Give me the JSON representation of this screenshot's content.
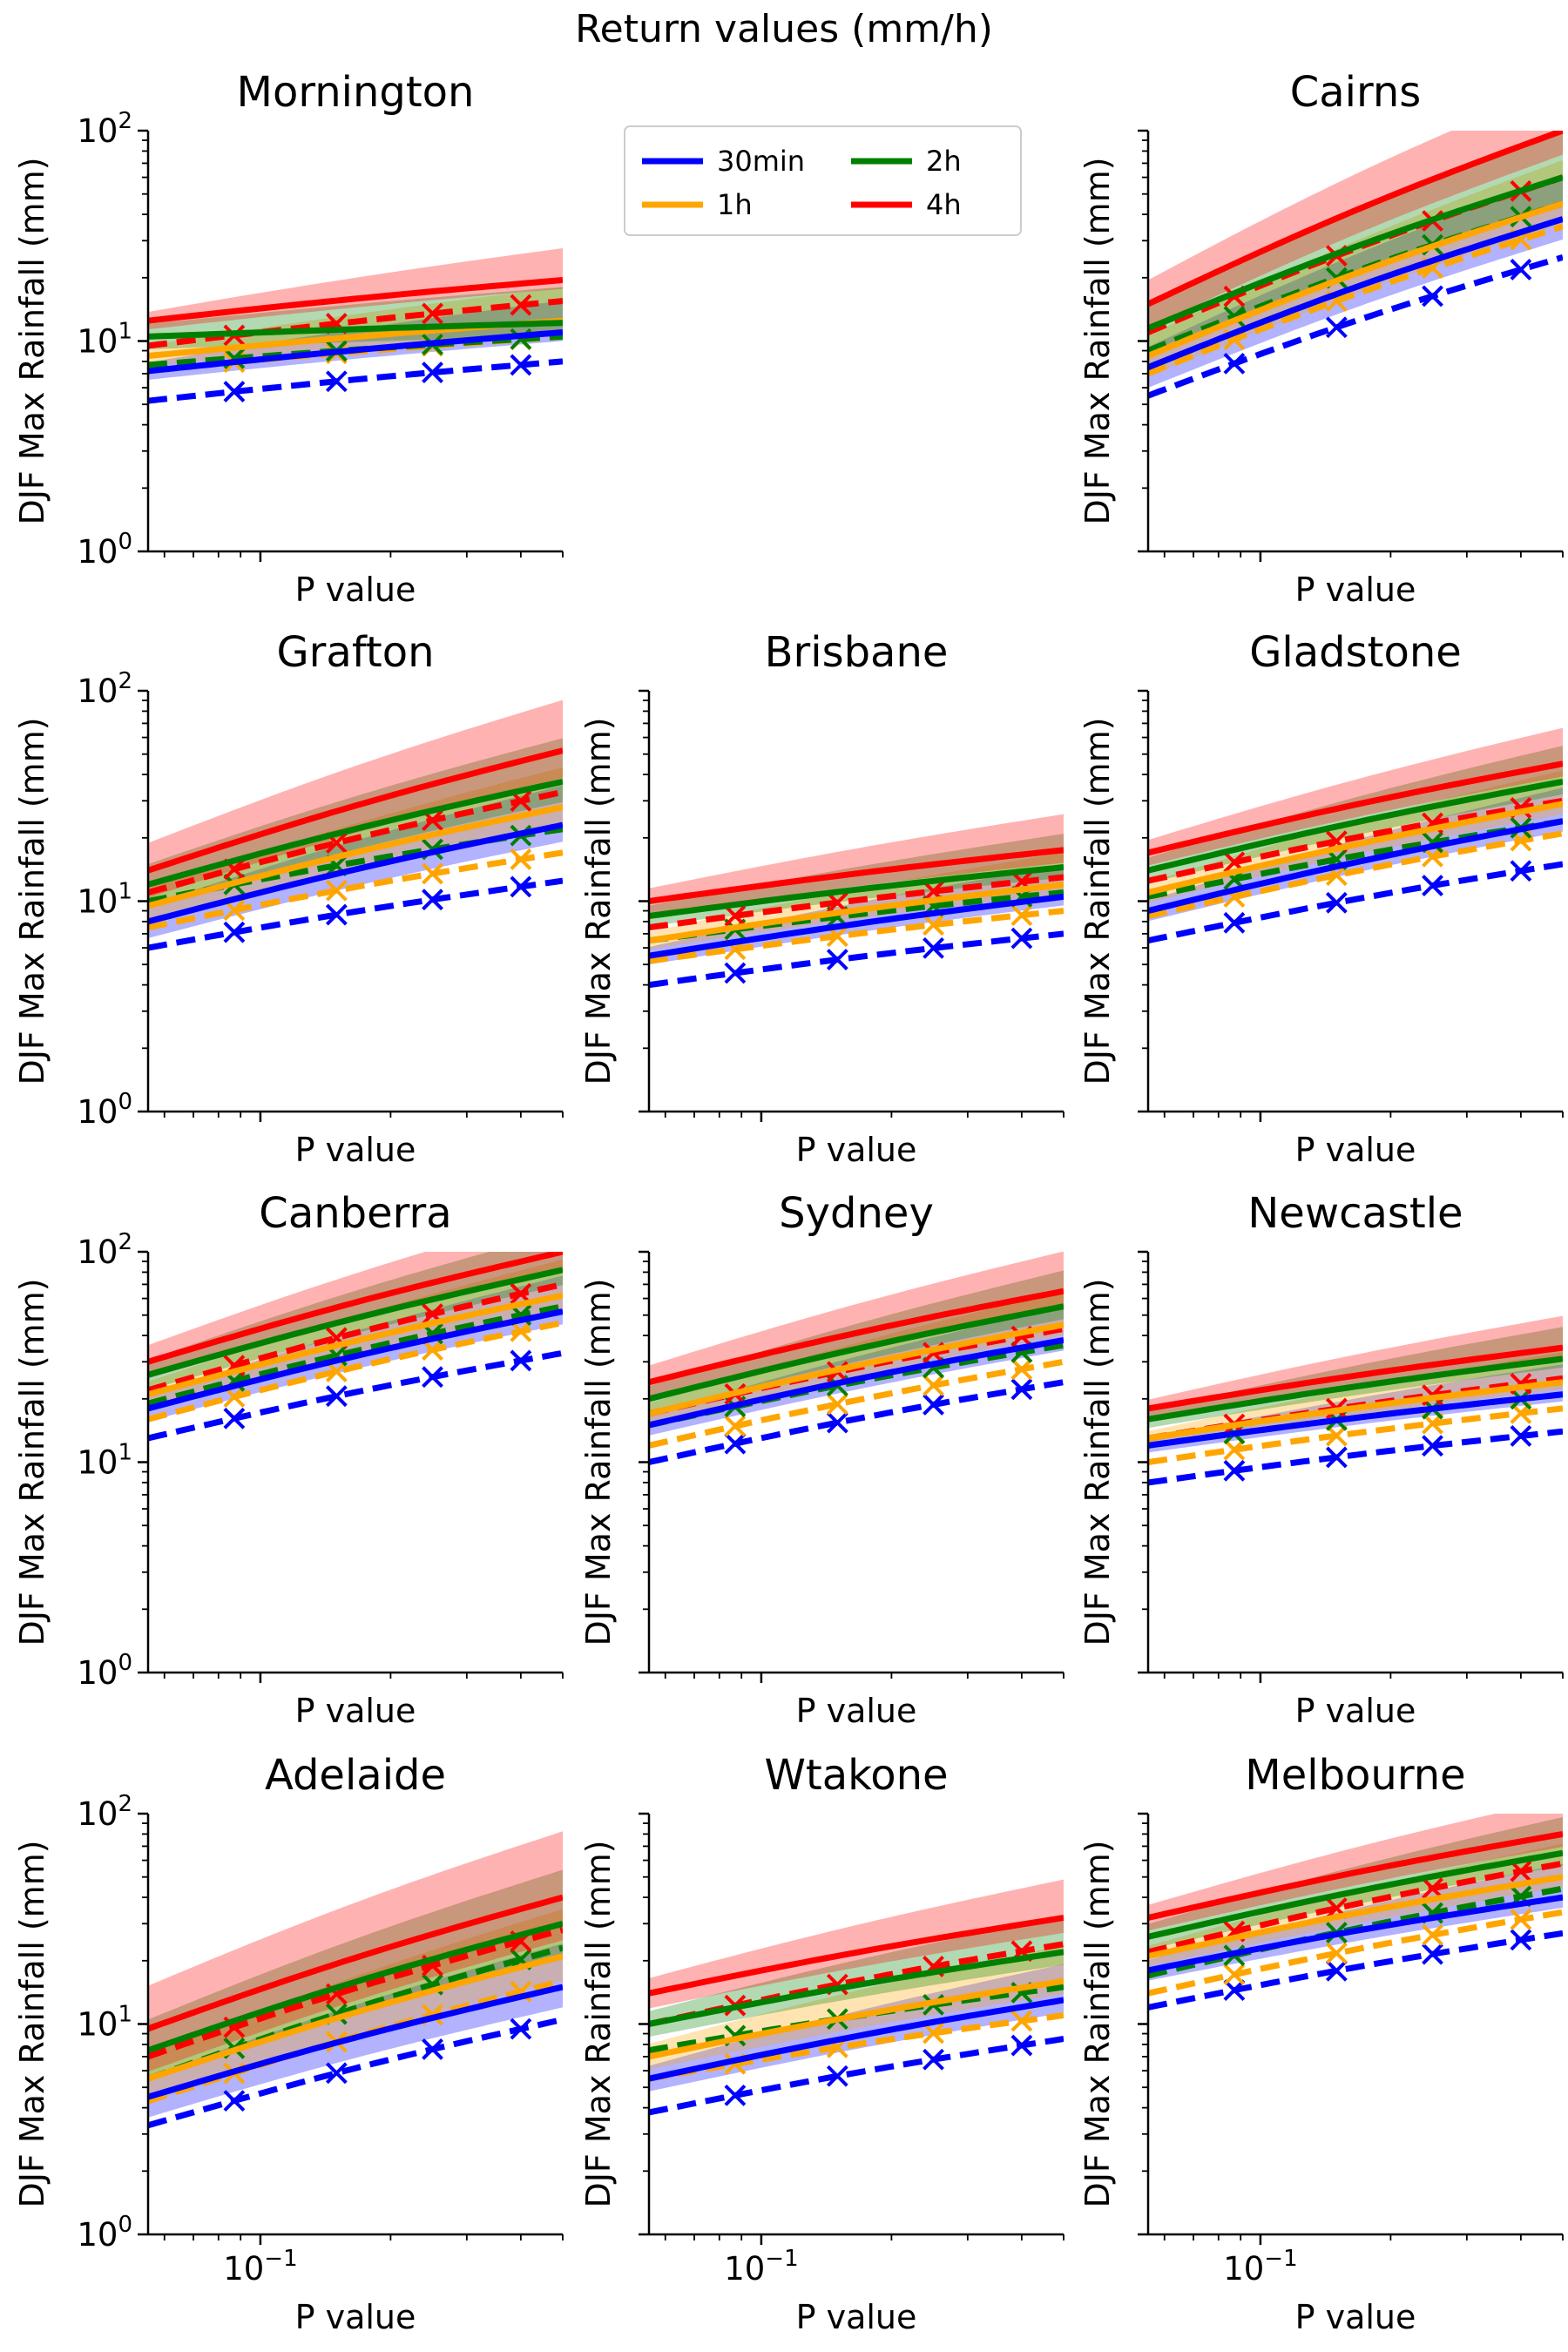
{
  "suptitle": "Return values (mm/h)",
  "chart_data": {
    "type": "line",
    "xscale": "log",
    "yscale": "log",
    "xlim": [
      0.055,
      0.5
    ],
    "ylim": [
      1,
      100
    ],
    "xlabel": "P value",
    "ylabel": "DJF Max Rainfall (mm)",
    "yticks": [
      1,
      10,
      100
    ],
    "ytick_labels": [
      "10^0",
      "10^1",
      "10^2"
    ],
    "xticks": [
      0.1
    ],
    "xtick_labels": [
      "10^-1"
    ],
    "marker_x": [
      0.087,
      0.15,
      0.25,
      0.4
    ],
    "grid": false,
    "legend": {
      "placement": "top-center",
      "columns": 2,
      "entries": [
        {
          "label": "30min",
          "color": "#0000ff"
        },
        {
          "label": "1h",
          "color": "#ffa500"
        },
        {
          "label": "2h",
          "color": "#008000"
        },
        {
          "label": "4h",
          "color": "#ff0000"
        }
      ]
    },
    "series_keys": [
      "30min",
      "1h",
      "2h",
      "4h"
    ],
    "colors": {
      "30min": "#0000ff",
      "1h": "#ffa500",
      "2h": "#008000",
      "4h": "#ff0000"
    },
    "notes": "Solid lines = model return values with shaded uncertainty band; dashed lines with x markers = observed return values.",
    "panels": [
      {
        "title": "Mornington",
        "solid": {
          "30min": [
            7.2,
            11.0
          ],
          "1h": [
            8.5,
            12.5
          ],
          "2h": [
            10.5,
            12.2
          ],
          "4h": [
            12.5,
            19.5
          ]
        },
        "dashed": {
          "30min": [
            5.2,
            8.0
          ],
          "1h": [
            7.3,
            10.5
          ],
          "2h": [
            7.7,
            10.5
          ],
          "4h": [
            9.5,
            15.5
          ]
        },
        "band": {
          "30min": 1.1,
          "1h": 1.12,
          "2h": 1.15,
          "4h": 1.1
        }
      },
      null,
      {
        "title": "Cairns",
        "solid": {
          "30min": [
            7.5,
            38
          ],
          "1h": [
            8.5,
            45
          ],
          "2h": [
            11.5,
            60
          ],
          "4h": [
            15,
            100
          ]
        },
        "dashed": {
          "30min": [
            5.5,
            25
          ],
          "1h": [
            7.0,
            35
          ],
          "2h": [
            9.0,
            45
          ],
          "4h": [
            11,
            60
          ]
        },
        "band": {
          "30min": 1.25,
          "1h": 1.25,
          "2h": 1.3,
          "4h": 1.3
        }
      },
      {
        "title": "Grafton",
        "solid": {
          "30min": [
            8.0,
            23
          ],
          "1h": [
            9.5,
            28
          ],
          "2h": [
            12,
            37
          ],
          "4h": [
            14,
            52
          ]
        },
        "dashed": {
          "30min": [
            6.0,
            12.5
          ],
          "1h": [
            7.5,
            17
          ],
          "2h": [
            10,
            22
          ],
          "4h": [
            11,
            33
          ]
        },
        "band": {
          "30min": 1.2,
          "1h": 1.2,
          "2h": 1.25,
          "4h": 1.35
        }
      },
      {
        "title": "Brisbane",
        "solid": {
          "30min": [
            5.5,
            10.5
          ],
          "1h": [
            6.5,
            12
          ],
          "2h": [
            8.5,
            14.5
          ],
          "4h": [
            10,
            17.5
          ]
        },
        "dashed": {
          "30min": [
            4.0,
            7.0
          ],
          "1h": [
            5.2,
            9.0
          ],
          "2h": [
            6.5,
            11
          ],
          "4h": [
            7.5,
            13
          ]
        },
        "band": {
          "30min": 1.1,
          "1h": 1.1,
          "2h": 1.12,
          "4h": 1.15
        }
      },
      {
        "title": "Gladstone",
        "solid": {
          "30min": [
            9.0,
            24
          ],
          "1h": [
            11,
            29
          ],
          "2h": [
            14,
            37
          ],
          "4h": [
            17,
            45
          ]
        },
        "dashed": {
          "30min": [
            6.5,
            15
          ],
          "1h": [
            8.5,
            21
          ],
          "2h": [
            10.5,
            24
          ],
          "4h": [
            12.5,
            30
          ]
        },
        "band": {
          "30min": 1.12,
          "1h": 1.12,
          "2h": 1.15,
          "4h": 1.15
        }
      },
      {
        "title": "Canberra",
        "solid": {
          "30min": [
            18,
            52
          ],
          "1h": [
            21,
            62
          ],
          "2h": [
            26,
            82
          ],
          "4h": [
            30,
            100
          ]
        },
        "dashed": {
          "30min": [
            13,
            33
          ],
          "1h": [
            16,
            46
          ],
          "2h": [
            19,
            55
          ],
          "4h": [
            22,
            70
          ]
        },
        "band": {
          "30min": 1.15,
          "1h": 1.15,
          "2h": 1.18,
          "4h": 1.2
        }
      },
      {
        "title": "Sydney",
        "solid": {
          "30min": [
            15,
            38
          ],
          "1h": [
            17,
            45
          ],
          "2h": [
            20,
            55
          ],
          "4h": [
            24,
            65
          ]
        },
        "dashed": {
          "30min": [
            10,
            24
          ],
          "1h": [
            12,
            30
          ],
          "2h": [
            15,
            36
          ],
          "4h": [
            17,
            43
          ]
        },
        "band": {
          "30min": 1.12,
          "1h": 1.12,
          "2h": 1.15,
          "4h": 1.2
        }
      },
      {
        "title": "Newcastle",
        "solid": {
          "30min": [
            12,
            21
          ],
          "1h": [
            13,
            24
          ],
          "2h": [
            16,
            31
          ],
          "4h": [
            18,
            35
          ]
        },
        "dashed": {
          "30min": [
            8.0,
            14
          ],
          "1h": [
            10,
            18
          ],
          "2h": [
            12,
            21
          ],
          "4h": [
            13,
            25
          ]
        },
        "band": {
          "30min": 1.08,
          "1h": 1.08,
          "2h": 1.1,
          "4h": 1.1
        }
      },
      {
        "title": "Adelaide",
        "solid": {
          "30min": [
            4.5,
            15
          ],
          "1h": [
            5.5,
            21
          ],
          "2h": [
            7.5,
            30
          ],
          "4h": [
            9.5,
            40
          ]
        },
        "dashed": {
          "30min": [
            3.3,
            10.5
          ],
          "1h": [
            4.3,
            16
          ],
          "2h": [
            5.5,
            23
          ],
          "4h": [
            7.0,
            28
          ]
        },
        "band": {
          "30min": 1.25,
          "1h": 1.3,
          "2h": 1.4,
          "4h": 1.6
        }
      },
      {
        "title": "Wtakone",
        "solid": {
          "30min": [
            5.5,
            13
          ],
          "1h": [
            7.0,
            16
          ],
          "2h": [
            10,
            22
          ],
          "4h": [
            14,
            32
          ]
        },
        "dashed": {
          "30min": [
            3.8,
            8.5
          ],
          "1h": [
            5.5,
            11
          ],
          "2h": [
            7.5,
            15
          ],
          "4h": [
            10,
            24
          ]
        },
        "band": {
          "30min": 1.15,
          "1h": 1.15,
          "2h": 1.15,
          "4h": 1.18
        }
      },
      {
        "title": "Melbourne",
        "solid": {
          "30min": [
            18,
            40
          ],
          "1h": [
            21,
            50
          ],
          "2h": [
            26,
            65
          ],
          "4h": [
            32,
            80
          ]
        },
        "dashed": {
          "30min": [
            12,
            27
          ],
          "1h": [
            14,
            34
          ],
          "2h": [
            17,
            44
          ],
          "4h": [
            22,
            58
          ]
        },
        "band": {
          "30min": 1.12,
          "1h": 1.12,
          "2h": 1.15,
          "4h": 1.15
        }
      }
    ]
  }
}
